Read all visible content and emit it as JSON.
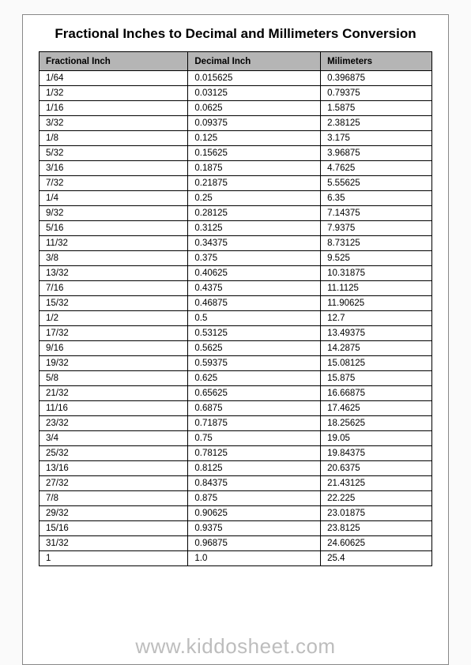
{
  "title": "Fractional Inches to Decimal and Millimeters Conversion",
  "footer": "www.kiddosheet.com",
  "table": {
    "type": "table",
    "header_bg": "#b5b5b5",
    "border_color": "#000000",
    "font_size": 11.5,
    "columns": [
      "Fractional Inch",
      "Decimal Inch",
      "Milimeters"
    ],
    "rows": [
      [
        "1/64",
        "0.015625",
        "0.396875"
      ],
      [
        "1/32",
        "0.03125",
        "0.79375"
      ],
      [
        "1/16",
        "0.0625",
        "1.5875"
      ],
      [
        "3/32",
        "0.09375",
        "2.38125"
      ],
      [
        "1/8",
        "0.125",
        "3.175"
      ],
      [
        "5/32",
        "0.15625",
        "3.96875"
      ],
      [
        "3/16",
        "0.1875",
        "4.7625"
      ],
      [
        "7/32",
        "0.21875",
        "5.55625"
      ],
      [
        "1/4",
        "0.25",
        "6.35"
      ],
      [
        "9/32",
        "0.28125",
        "7.14375"
      ],
      [
        "5/16",
        "0.3125",
        "7.9375"
      ],
      [
        "11/32",
        "0.34375",
        "8.73125"
      ],
      [
        "3/8",
        "0.375",
        "9.525"
      ],
      [
        "13/32",
        "0.40625",
        "10.31875"
      ],
      [
        "7/16",
        "0.4375",
        "11.1125"
      ],
      [
        "15/32",
        "0.46875",
        "11.90625"
      ],
      [
        "1/2",
        "0.5",
        "12.7"
      ],
      [
        "17/32",
        "0.53125",
        "13.49375"
      ],
      [
        "9/16",
        "0.5625",
        "14.2875"
      ],
      [
        "19/32",
        "0.59375",
        "15.08125"
      ],
      [
        "5/8",
        "0.625",
        "15.875"
      ],
      [
        "21/32",
        "0.65625",
        "16.66875"
      ],
      [
        "11/16",
        "0.6875",
        "17.4625"
      ],
      [
        "23/32",
        "0.71875",
        "18.25625"
      ],
      [
        "3/4",
        "0.75",
        "19.05"
      ],
      [
        "25/32",
        "0.78125",
        "19.84375"
      ],
      [
        "13/16",
        "0.8125",
        "20.6375"
      ],
      [
        "27/32",
        "0.84375",
        "21.43125"
      ],
      [
        "7/8",
        "0.875",
        "22.225"
      ],
      [
        "29/32",
        "0.90625",
        "23.01875"
      ],
      [
        "15/16",
        "0.9375",
        "23.8125"
      ],
      [
        "31/32",
        "0.96875",
        "24.60625"
      ],
      [
        "1",
        "1.0",
        "25.4"
      ]
    ]
  }
}
